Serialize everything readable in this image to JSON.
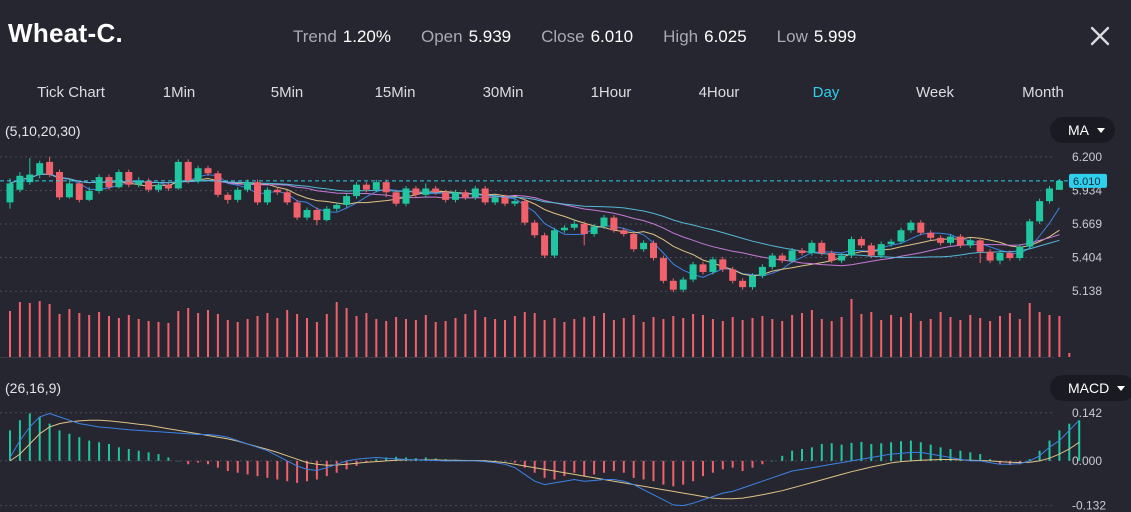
{
  "header": {
    "title": "Wheat-C.",
    "stats": [
      {
        "label": "Trend",
        "value": "1.20%"
      },
      {
        "label": "Open",
        "value": "5.939"
      },
      {
        "label": "Close",
        "value": "6.010"
      },
      {
        "label": "High",
        "value": "6.025"
      },
      {
        "label": "Low",
        "value": "5.999"
      }
    ]
  },
  "timeframes": [
    "Tick Chart",
    "1Min",
    "5Min",
    "15Min",
    "30Min",
    "1Hour",
    "4Hour",
    "Day",
    "Week",
    "Month"
  ],
  "active_timeframe": "Day",
  "main_indicator": {
    "params": "(5,10,20,30)",
    "button": "MA"
  },
  "sub_indicator": {
    "params": "(26,16,9)",
    "button": "MACD"
  },
  "colors": {
    "up": "#1fc6a0",
    "down": "#f1616c",
    "volume": "#f1616c",
    "current_price_line": "#2fd0ee",
    "background": "#25262f",
    "macd_line": "#3d83e6",
    "signal_line": "#e0c385"
  },
  "chart_data": [
    {
      "type": "candlestick",
      "title": "",
      "y_ticks": [
        6.2,
        5.934,
        5.669,
        5.404,
        5.138
      ],
      "y_tick_labels": [
        "6.200",
        "5.934",
        "5.669",
        "5.404",
        "5.138"
      ],
      "ylim": [
        5.1,
        6.27
      ],
      "current_price": 6.01,
      "current_price_label": "6.010",
      "candles": [
        [
          5.84,
          5.99,
          6.03,
          5.79
        ],
        [
          5.94,
          6.05,
          6.08,
          5.92
        ],
        [
          6.0,
          6.06,
          6.19,
          5.98
        ],
        [
          6.06,
          6.15,
          6.17,
          6.03
        ],
        [
          6.16,
          6.06,
          6.2,
          6.04
        ],
        [
          6.08,
          5.88,
          6.1,
          5.86
        ],
        [
          5.88,
          5.99,
          6.02,
          5.87
        ],
        [
          5.99,
          5.86,
          6.01,
          5.84
        ],
        [
          5.86,
          5.93,
          5.96,
          5.85
        ],
        [
          5.93,
          6.04,
          6.06,
          5.91
        ],
        [
          6.04,
          5.96,
          6.06,
          5.94
        ],
        [
          5.96,
          6.08,
          6.1,
          5.95
        ],
        [
          6.08,
          5.98,
          6.1,
          5.96
        ],
        [
          5.98,
          6.01,
          6.04,
          5.96
        ],
        [
          6.01,
          5.94,
          6.03,
          5.92
        ],
        [
          5.94,
          5.98,
          6.0,
          5.92
        ],
        [
          5.98,
          5.95,
          5.99,
          5.93
        ],
        [
          5.95,
          6.16,
          6.18,
          5.94
        ],
        [
          6.16,
          6.01,
          6.18,
          5.99
        ],
        [
          6.01,
          6.11,
          6.13,
          5.99
        ],
        [
          6.11,
          6.07,
          6.13,
          6.05
        ],
        [
          6.07,
          5.9,
          6.09,
          5.88
        ],
        [
          5.9,
          5.86,
          5.92,
          5.83
        ],
        [
          5.86,
          5.94,
          5.96,
          5.84
        ],
        [
          5.94,
          6.0,
          6.02,
          5.92
        ],
        [
          6.0,
          5.84,
          6.02,
          5.82
        ],
        [
          5.84,
          5.94,
          5.96,
          5.82
        ],
        [
          5.94,
          5.92,
          5.96,
          5.9
        ],
        [
          5.92,
          5.84,
          5.94,
          5.82
        ],
        [
          5.84,
          5.72,
          5.86,
          5.7
        ],
        [
          5.72,
          5.78,
          5.8,
          5.7
        ],
        [
          5.78,
          5.7,
          5.8,
          5.66
        ],
        [
          5.7,
          5.79,
          5.81,
          5.69
        ],
        [
          5.79,
          5.82,
          5.84,
          5.77
        ],
        [
          5.82,
          5.89,
          5.91,
          5.8
        ],
        [
          5.89,
          5.98,
          6.0,
          5.87
        ],
        [
          5.98,
          5.94,
          6.0,
          5.92
        ],
        [
          5.94,
          6.0,
          6.02,
          5.92
        ],
        [
          6.0,
          5.92,
          6.02,
          5.88
        ],
        [
          5.92,
          5.83,
          5.94,
          5.81
        ],
        [
          5.83,
          5.95,
          5.97,
          5.81
        ],
        [
          5.95,
          5.9,
          5.97,
          5.88
        ],
        [
          5.9,
          5.95,
          5.99,
          5.88
        ],
        [
          5.95,
          5.92,
          5.97,
          5.9
        ],
        [
          5.92,
          5.86,
          5.94,
          5.84
        ],
        [
          5.86,
          5.92,
          5.94,
          5.84
        ],
        [
          5.92,
          5.88,
          5.94,
          5.86
        ],
        [
          5.88,
          5.95,
          5.97,
          5.86
        ],
        [
          5.95,
          5.84,
          5.97,
          5.82
        ],
        [
          5.84,
          5.88,
          5.9,
          5.82
        ],
        [
          5.88,
          5.83,
          5.9,
          5.81
        ],
        [
          5.83,
          5.85,
          5.87,
          5.81
        ],
        [
          5.85,
          5.68,
          5.87,
          5.66
        ],
        [
          5.68,
          5.58,
          5.7,
          5.56
        ],
        [
          5.58,
          5.42,
          5.6,
          5.4
        ],
        [
          5.42,
          5.62,
          5.64,
          5.4
        ],
        [
          5.62,
          5.64,
          5.66,
          5.6
        ],
        [
          5.64,
          5.67,
          5.7,
          5.62
        ],
        [
          5.67,
          5.59,
          5.69,
          5.5
        ],
        [
          5.59,
          5.65,
          5.67,
          5.57
        ],
        [
          5.65,
          5.72,
          5.74,
          5.63
        ],
        [
          5.72,
          5.62,
          5.74,
          5.6
        ],
        [
          5.62,
          5.59,
          5.64,
          5.57
        ],
        [
          5.59,
          5.47,
          5.61,
          5.45
        ],
        [
          5.47,
          5.52,
          5.54,
          5.45
        ],
        [
          5.52,
          5.4,
          5.54,
          5.38
        ],
        [
          5.4,
          5.22,
          5.42,
          5.2
        ],
        [
          5.22,
          5.15,
          5.24,
          5.13
        ],
        [
          5.15,
          5.23,
          5.25,
          5.13
        ],
        [
          5.23,
          5.35,
          5.37,
          5.21
        ],
        [
          5.35,
          5.29,
          5.37,
          5.27
        ],
        [
          5.29,
          5.39,
          5.41,
          5.27
        ],
        [
          5.39,
          5.31,
          5.41,
          5.29
        ],
        [
          5.31,
          5.22,
          5.33,
          5.2
        ],
        [
          5.22,
          5.17,
          5.24,
          5.15
        ],
        [
          5.17,
          5.26,
          5.28,
          5.15
        ],
        [
          5.26,
          5.33,
          5.35,
          5.24
        ],
        [
          5.33,
          5.42,
          5.44,
          5.31
        ],
        [
          5.42,
          5.38,
          5.44,
          5.36
        ],
        [
          5.38,
          5.46,
          5.48,
          5.36
        ],
        [
          5.46,
          5.44,
          5.48,
          5.42
        ],
        [
          5.44,
          5.52,
          5.54,
          5.42
        ],
        [
          5.52,
          5.44,
          5.54,
          5.42
        ],
        [
          5.44,
          5.38,
          5.46,
          5.36
        ],
        [
          5.38,
          5.42,
          5.44,
          5.36
        ],
        [
          5.42,
          5.55,
          5.57,
          5.4
        ],
        [
          5.55,
          5.5,
          5.57,
          5.48
        ],
        [
          5.5,
          5.42,
          5.52,
          5.4
        ],
        [
          5.42,
          5.51,
          5.53,
          5.4
        ],
        [
          5.51,
          5.53,
          5.55,
          5.49
        ],
        [
          5.53,
          5.62,
          5.64,
          5.51
        ],
        [
          5.62,
          5.68,
          5.7,
          5.6
        ],
        [
          5.68,
          5.6,
          5.7,
          5.58
        ],
        [
          5.6,
          5.56,
          5.62,
          5.54
        ],
        [
          5.56,
          5.52,
          5.58,
          5.5
        ],
        [
          5.52,
          5.57,
          5.59,
          5.5
        ],
        [
          5.57,
          5.5,
          5.59,
          5.48
        ],
        [
          5.5,
          5.54,
          5.56,
          5.48
        ],
        [
          5.54,
          5.45,
          5.56,
          5.36
        ],
        [
          5.45,
          5.38,
          5.47,
          5.36
        ],
        [
          5.38,
          5.44,
          5.46,
          5.35
        ],
        [
          5.44,
          5.4,
          5.46,
          5.38
        ],
        [
          5.4,
          5.49,
          5.51,
          5.38
        ],
        [
          5.49,
          5.69,
          5.71,
          5.47
        ],
        [
          5.69,
          5.85,
          5.87,
          5.67
        ],
        [
          5.85,
          5.95,
          5.97,
          5.83
        ],
        [
          5.939,
          6.01,
          6.025,
          5.999
        ]
      ],
      "ma_series": [
        {
          "period": 5,
          "color": "#3d83e6"
        },
        {
          "period": 10,
          "color": "#e0c385"
        },
        {
          "period": 20,
          "color": "#c77ad8"
        },
        {
          "period": 30,
          "color": "#55b8d8"
        }
      ],
      "volume": [
        46,
        55,
        54,
        56,
        53,
        43,
        48,
        44,
        42,
        45,
        41,
        39,
        42,
        38,
        36,
        35,
        34,
        46,
        49,
        44,
        47,
        43,
        37,
        35,
        38,
        41,
        44,
        39,
        47,
        43,
        39,
        35,
        43,
        55,
        49,
        41,
        44,
        38,
        36,
        40,
        38,
        37,
        42,
        35,
        36,
        39,
        43,
        47,
        40,
        38,
        37,
        41,
        45,
        44,
        37,
        39,
        35,
        38,
        40,
        41,
        44,
        37,
        39,
        42,
        35,
        40,
        38,
        41,
        39,
        43,
        42,
        38,
        36,
        40,
        37,
        39,
        41,
        38,
        36,
        42,
        44,
        47,
        38,
        36,
        40,
        58,
        43,
        45,
        37,
        42,
        40,
        44,
        36,
        38,
        45,
        40,
        37,
        42,
        39,
        36,
        41,
        44,
        38,
        54,
        45,
        42,
        41,
        4
      ]
    },
    {
      "type": "macd",
      "params": "(26,16,9)",
      "y_ticks": [
        0.142,
        0.0,
        -0.132
      ],
      "y_tick_labels": [
        "0.142",
        "0.000",
        "-0.132"
      ],
      "ylim": [
        -0.145,
        0.165
      ],
      "histogram": [
        0.09,
        0.12,
        0.14,
        0.13,
        0.11,
        0.09,
        0.08,
        0.07,
        0.06,
        0.055,
        0.05,
        0.04,
        0.035,
        0.03,
        0.025,
        0.02,
        0.01,
        0.0,
        -0.01,
        -0.005,
        -0.01,
        -0.02,
        -0.03,
        -0.035,
        -0.04,
        -0.045,
        -0.05,
        -0.055,
        -0.06,
        -0.065,
        -0.06,
        -0.055,
        -0.045,
        -0.035,
        -0.025,
        -0.015,
        -0.005,
        0.005,
        0.01,
        0.012,
        0.01,
        0.008,
        0.01,
        0.007,
        0.005,
        0.004,
        0.003,
        0.002,
        0.002,
        0.001,
        0.0,
        -0.005,
        -0.02,
        -0.035,
        -0.05,
        -0.055,
        -0.045,
        -0.035,
        -0.045,
        -0.04,
        -0.035,
        -0.03,
        -0.035,
        -0.05,
        -0.055,
        -0.06,
        -0.07,
        -0.075,
        -0.07,
        -0.06,
        -0.045,
        -0.035,
        -0.025,
        -0.02,
        -0.03,
        -0.02,
        -0.01,
        0.0,
        0.015,
        0.03,
        0.035,
        0.04,
        0.05,
        0.052,
        0.048,
        0.053,
        0.056,
        0.05,
        0.052,
        0.055,
        0.058,
        0.06,
        0.055,
        0.048,
        0.04,
        0.035,
        0.03,
        0.025,
        0.02,
        0.005,
        -0.01,
        -0.012,
        -0.01,
        0.005,
        0.03,
        0.06,
        0.09,
        0.11,
        0.12
      ],
      "macd_line": [
        0.01,
        0.06,
        0.1,
        0.13,
        0.14,
        0.13,
        0.12,
        0.11,
        0.105,
        0.1,
        0.098,
        0.095,
        0.092,
        0.09,
        0.088,
        0.086,
        0.084,
        0.082,
        0.08,
        0.078,
        0.078,
        0.075,
        0.07,
        0.06,
        0.05,
        0.04,
        0.03,
        0.015,
        0.0,
        -0.015,
        -0.025,
        -0.028,
        -0.02,
        -0.01,
        0.0,
        0.005,
        0.008,
        0.01,
        0.008,
        0.006,
        0.004,
        0.003,
        0.002,
        0.001,
        0.0,
        0.0,
        0.0,
        0.0,
        -0.002,
        -0.005,
        -0.01,
        -0.02,
        -0.04,
        -0.06,
        -0.07,
        -0.065,
        -0.06,
        -0.055,
        -0.06,
        -0.058,
        -0.055,
        -0.055,
        -0.06,
        -0.07,
        -0.085,
        -0.1,
        -0.115,
        -0.13,
        -0.132,
        -0.125,
        -0.115,
        -0.105,
        -0.095,
        -0.09,
        -0.08,
        -0.07,
        -0.06,
        -0.05,
        -0.04,
        -0.03,
        -0.025,
        -0.02,
        -0.015,
        -0.01,
        -0.005,
        0.0,
        0.005,
        0.01,
        0.015,
        0.02,
        0.022,
        0.025,
        0.025,
        0.02,
        0.015,
        0.01,
        0.005,
        0.0,
        0.0,
        -0.005,
        -0.01,
        -0.01,
        -0.008,
        0.0,
        0.015,
        0.04,
        0.06,
        0.09,
        0.12
      ],
      "signal_line": [
        0.0,
        0.02,
        0.05,
        0.08,
        0.1,
        0.11,
        0.115,
        0.118,
        0.12,
        0.12,
        0.118,
        0.115,
        0.112,
        0.108,
        0.105,
        0.1,
        0.095,
        0.09,
        0.085,
        0.08,
        0.075,
        0.07,
        0.065,
        0.058,
        0.05,
        0.042,
        0.034,
        0.025,
        0.015,
        0.005,
        -0.005,
        -0.01,
        -0.013,
        -0.012,
        -0.01,
        -0.007,
        -0.004,
        -0.002,
        0.0,
        0.002,
        0.003,
        0.003,
        0.003,
        0.003,
        0.002,
        0.002,
        0.001,
        0.001,
        0.0,
        -0.002,
        -0.005,
        -0.01,
        -0.015,
        -0.02,
        -0.025,
        -0.03,
        -0.035,
        -0.04,
        -0.045,
        -0.05,
        -0.055,
        -0.06,
        -0.065,
        -0.07,
        -0.075,
        -0.08,
        -0.085,
        -0.09,
        -0.095,
        -0.1,
        -0.105,
        -0.11,
        -0.112,
        -0.112,
        -0.11,
        -0.105,
        -0.1,
        -0.094,
        -0.088,
        -0.08,
        -0.072,
        -0.064,
        -0.056,
        -0.048,
        -0.04,
        -0.032,
        -0.025,
        -0.018,
        -0.012,
        -0.006,
        -0.002,
        0.0,
        0.002,
        0.003,
        0.004,
        0.004,
        0.003,
        0.002,
        0.001,
        0.0,
        -0.002,
        -0.004,
        -0.005,
        -0.004,
        0.0,
        0.008,
        0.02,
        0.035,
        0.055
      ]
    }
  ]
}
